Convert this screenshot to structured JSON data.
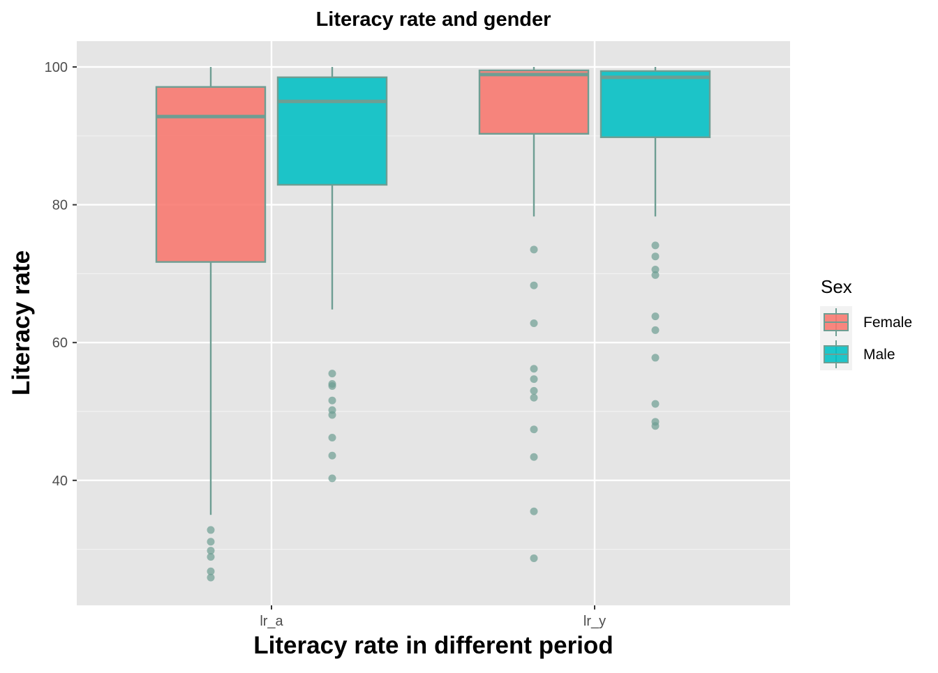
{
  "chart_data": {
    "type": "box",
    "title": "Literacy rate and gender",
    "xlabel": "Literacy rate in different period",
    "ylabel": "Literacy rate",
    "categories": [
      "lr_a",
      "lr_y"
    ],
    "ylim": [
      22,
      104
    ],
    "y_ticks": [
      40,
      60,
      80,
      100
    ],
    "grid": true,
    "legend": {
      "title": "Sex",
      "position": "right",
      "entries": [
        "Female",
        "Male"
      ]
    },
    "series": [
      {
        "name": "Female",
        "color": "#F8766D",
        "boxes": [
          {
            "category": "lr_a",
            "whisker_low": 35.0,
            "q1": 71.7,
            "median": 92.8,
            "q3": 97.1,
            "whisker_high": 100.0,
            "outliers": [
              32.8,
              31.1,
              29.8,
              28.9,
              26.8,
              25.9
            ]
          },
          {
            "category": "lr_y",
            "whisker_low": 78.3,
            "q1": 90.3,
            "median": 98.9,
            "q3": 99.5,
            "whisker_high": 100.0,
            "outliers": [
              73.5,
              68.3,
              62.8,
              56.2,
              54.7,
              53.0,
              52.0,
              47.4,
              43.4,
              35.5,
              28.7
            ]
          }
        ]
      },
      {
        "name": "Male",
        "color": "#00BFC4",
        "boxes": [
          {
            "category": "lr_a",
            "whisker_low": 64.8,
            "q1": 82.9,
            "median": 95.0,
            "q3": 98.5,
            "whisker_high": 100.0,
            "outliers": [
              55.5,
              54.0,
              53.7,
              51.6,
              50.2,
              49.5,
              46.2,
              43.6,
              40.3
            ]
          },
          {
            "category": "lr_y",
            "whisker_low": 78.3,
            "q1": 89.8,
            "median": 98.5,
            "q3": 99.4,
            "whisker_high": 100.0,
            "outliers": [
              74.1,
              72.5,
              70.6,
              69.8,
              63.8,
              61.8,
              57.8,
              51.1,
              48.5,
              47.9
            ]
          }
        ]
      }
    ],
    "outline_color": "#6E9E93"
  }
}
